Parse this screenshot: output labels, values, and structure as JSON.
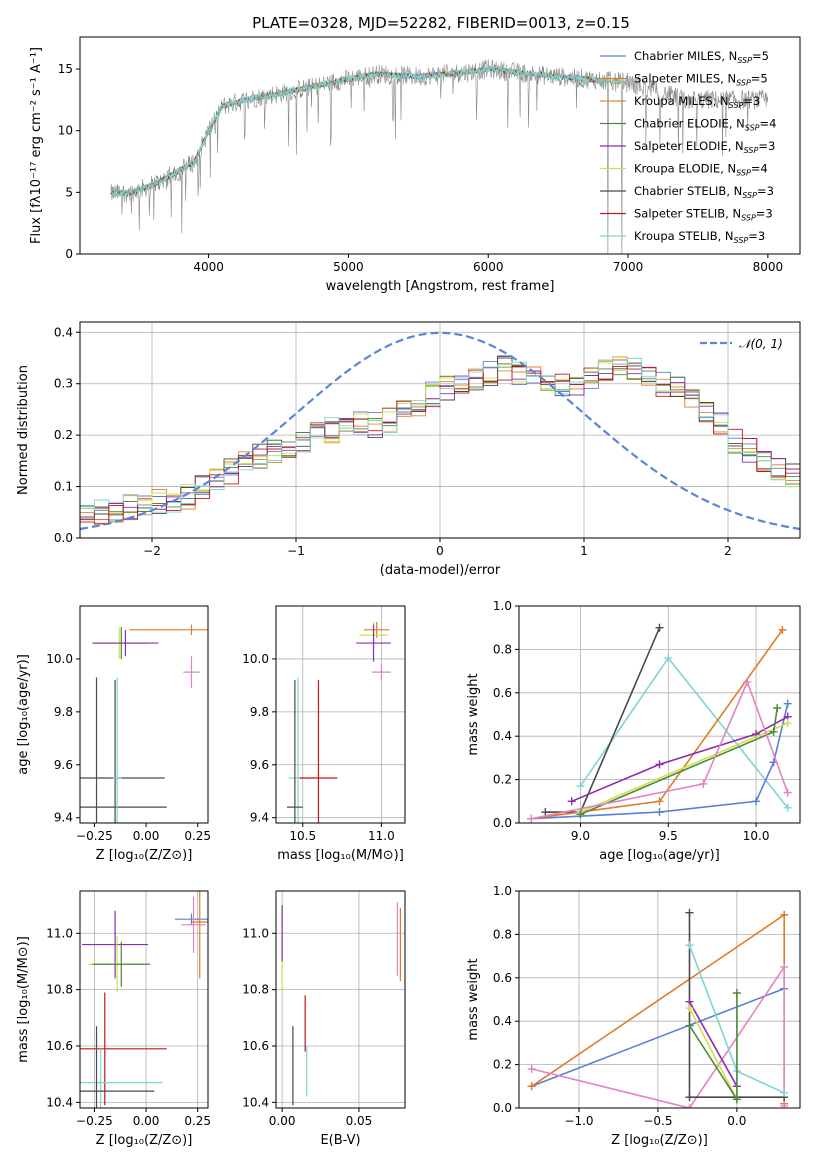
{
  "figure_title": "PLATE=0328, MJD=52282, FIBERID=0013, z=0.15",
  "colors": {
    "Chabrier MILES": "#5b7fd6",
    "Salpeter MILES": "#e07b2a",
    "Kroupa MILES": "#d98c2a",
    "Chabrier ELODIE": "#4a8a3a",
    "Salpeter ELODIE": "#8e2bb0",
    "Kroupa ELODIE": "#cfe04a",
    "Chabrier STELIB": "#4a4a4a",
    "Salpeter STELIB": "#c01818",
    "Kroupa STELIB": "#7fd4d4",
    "normal": "#5b86d6",
    "pink": "#e384c0",
    "data": "#888888"
  },
  "chart_data": [
    {
      "id": "spectrum",
      "type": "line",
      "title": "PLATE=0328, MJD=52282, FIBERID=0013, z=0.15",
      "xlabel": "wavelength [Angstrom, rest frame]",
      "ylabel": "Flux [fλ10⁻¹⁷ erg cm⁻² s⁻¹ A⁻¹]",
      "xlim": [
        3080,
        8230
      ],
      "ylim": [
        0,
        17.6
      ],
      "xticks": [
        4000,
        5000,
        6000,
        7000,
        8000
      ],
      "yticks": [
        0,
        5,
        10,
        15
      ],
      "legend_position": "right",
      "legend": [
        {
          "label": "Chabrier MILES, N",
          "sub": "SSP",
          "suffix": "=5",
          "color": "#5b7fd6"
        },
        {
          "label": "Salpeter MILES, N",
          "sub": "SSP",
          "suffix": "=5",
          "color": "#e07b2a"
        },
        {
          "label": "Kroupa MILES, N",
          "sub": "SSP",
          "suffix": "=3",
          "color": "#d98c2a"
        },
        {
          "label": "Chabrier ELODIE, N",
          "sub": "SSP",
          "suffix": "=4",
          "color": "#4a8a3a"
        },
        {
          "label": "Salpeter ELODIE, N",
          "sub": "SSP",
          "suffix": "=3",
          "color": "#8e2bb0"
        },
        {
          "label": "Kroupa ELODIE, N",
          "sub": "SSP",
          "suffix": "=4",
          "color": "#cfe04a"
        },
        {
          "label": "Chabrier STELIB, N",
          "sub": "SSP",
          "suffix": "=3",
          "color": "#4a4a4a"
        },
        {
          "label": "Salpeter STELIB, N",
          "sub": "SSP",
          "suffix": "=3",
          "color": "#c01818"
        },
        {
          "label": "Kroupa STELIB, N",
          "sub": "SSP",
          "suffix": "=3",
          "color": "#7fd4d4"
        }
      ],
      "continuum": {
        "x": [
          3300,
          3450,
          3600,
          3750,
          3900,
          4000,
          4100,
          4300,
          4500,
          4800,
          5000,
          5200,
          5500,
          5800,
          6000,
          6300,
          6600,
          6800,
          7000,
          7200,
          7400
        ],
        "y": [
          4.9,
          5.0,
          5.6,
          6.5,
          7.5,
          10.0,
          12.0,
          12.6,
          13.0,
          13.7,
          14.2,
          14.6,
          14.4,
          14.7,
          15.0,
          14.6,
          14.3,
          14.1,
          13.9,
          13.2,
          12.5
        ]
      },
      "data_range": [
        3300,
        8000
      ]
    },
    {
      "id": "residuals",
      "type": "histogram",
      "xlabel": "(data-model)/error",
      "ylabel": "Normed distribution",
      "xlim": [
        -2.5,
        2.5
      ],
      "ylim": [
        0,
        0.42
      ],
      "xticks": [
        -2,
        -1,
        0,
        1,
        2
      ],
      "yticks": [
        0.0,
        0.1,
        0.2,
        0.3,
        0.4
      ],
      "bin_width": 0.1,
      "legend_position": "top-right",
      "legend_label": "𝒩(0, 1)",
      "normal": {
        "mean": 0,
        "sigma": 1
      },
      "mean_counts": [
        0.04,
        0.05,
        0.05,
        0.06,
        0.06,
        0.07,
        0.07,
        0.08,
        0.1,
        0.11,
        0.13,
        0.15,
        0.16,
        0.17,
        0.18,
        0.19,
        0.2,
        0.21,
        0.21,
        0.22,
        0.22,
        0.23,
        0.25,
        0.26,
        0.28,
        0.29,
        0.3,
        0.31,
        0.32,
        0.33,
        0.32,
        0.31,
        0.3,
        0.3,
        0.3,
        0.31,
        0.33,
        0.34,
        0.33,
        0.32,
        0.3,
        0.29,
        0.27,
        0.24,
        0.22,
        0.19,
        0.17,
        0.15,
        0.13,
        0.12,
        0.11,
        0.1,
        0.09,
        0.09,
        0.08,
        0.07,
        0.07,
        0.06,
        0.05,
        0.05
      ]
    },
    {
      "id": "age_vs_Z",
      "type": "errorbar",
      "xlabel": "Z [log₁₀(Z/Z⊙)]",
      "ylabel": "age  [log₁₀(age/yr)]",
      "xlim": [
        -0.32,
        0.3
      ],
      "ylim": [
        9.38,
        10.2
      ],
      "xticks": [
        -0.25,
        0.0,
        0.25
      ],
      "xticklabels": [
        "−0.25",
        "0.00",
        "0.25"
      ],
      "yticks": [
        9.4,
        9.6,
        9.8,
        10.0
      ],
      "points": [
        {
          "x": 0.22,
          "y": 10.11,
          "xerr": 0.3,
          "yerr": 0.02,
          "color": "#e07b2a"
        },
        {
          "x": -0.13,
          "y": 10.06,
          "xerr": 0.13,
          "yerr": 0.06,
          "color": "#cfe04a"
        },
        {
          "x": -0.12,
          "y": 10.06,
          "xerr": 0.13,
          "yerr": 0.06,
          "color": "#4a8a3a"
        },
        {
          "x": -0.1,
          "y": 10.06,
          "xerr": 0.16,
          "yerr": 0.05,
          "color": "#8e2bb0"
        },
        {
          "x": 0.22,
          "y": 9.95,
          "xerr": 0.04,
          "yerr": 0.06,
          "color": "#e384c0"
        },
        {
          "x": -0.24,
          "y": 9.55,
          "xerr": 0.33,
          "yerr": 0.38,
          "color": "#4a4a4a"
        },
        {
          "x": -0.15,
          "y": 9.44,
          "xerr": 0.25,
          "yerr": 0.48,
          "color": "#4a4a4a"
        },
        {
          "x": -0.14,
          "y": 9.55,
          "xerr": 0.02,
          "yerr": 0.38,
          "color": "#7fd4d4"
        }
      ]
    },
    {
      "id": "age_vs_mass",
      "type": "errorbar",
      "xlabel": "mass [log₁₀(M/M⊙)]",
      "xlim": [
        10.33,
        11.15
      ],
      "ylim": [
        9.38,
        10.2
      ],
      "xticks": [
        10.5,
        11.0
      ],
      "yticks": [
        9.4,
        9.6,
        9.8,
        10.0
      ],
      "points": [
        {
          "x": 10.97,
          "y": 10.11,
          "xerr": 0.08,
          "yerr": 0.03,
          "color": "#e07b2a"
        },
        {
          "x": 10.95,
          "y": 10.09,
          "xerr": 0.09,
          "yerr": 0.05,
          "color": "#cfe04a"
        },
        {
          "x": 10.95,
          "y": 10.06,
          "xerr": 0.11,
          "yerr": 0.07,
          "color": "#8e2bb0"
        },
        {
          "x": 11.0,
          "y": 9.95,
          "xerr": 0.06,
          "yerr": 0.03,
          "color": "#e384c0"
        },
        {
          "x": 10.47,
          "y": 9.55,
          "xerr": 0.06,
          "yerr": 0.38,
          "color": "#7fd4d4"
        },
        {
          "x": 10.6,
          "y": 9.55,
          "xerr": 0.12,
          "yerr": 0.37,
          "color": "#c01818"
        },
        {
          "x": 10.45,
          "y": 9.44,
          "xerr": 0.05,
          "yerr": 0.48,
          "color": "#4a4a4a"
        }
      ]
    },
    {
      "id": "weight_vs_age",
      "type": "line",
      "xlabel": "age  [log₁₀(age/yr)]",
      "ylabel": "mass weight",
      "xlim": [
        8.65,
        10.25
      ],
      "ylim": [
        0,
        1.0
      ],
      "xticks": [
        9.0,
        9.5,
        10.0
      ],
      "yticks": [
        0.0,
        0.2,
        0.4,
        0.6,
        0.8,
        1.0
      ],
      "series": [
        {
          "color": "#7fd4d4",
          "x": [
            9.0,
            9.5,
            10.18
          ],
          "y": [
            0.17,
            0.76,
            0.07
          ]
        },
        {
          "color": "#4a4a4a",
          "x": [
            8.8,
            9.0,
            9.45
          ],
          "y": [
            0.05,
            0.05,
            0.9
          ]
        },
        {
          "color": "#5b7fd6",
          "x": [
            8.72,
            9.45,
            10.0,
            10.1,
            10.18
          ],
          "y": [
            0.02,
            0.05,
            0.1,
            0.28,
            0.55
          ]
        },
        {
          "color": "#e07b2a",
          "x": [
            8.72,
            9.45,
            10.15
          ],
          "y": [
            0.02,
            0.1,
            0.89
          ]
        },
        {
          "color": "#8e2bb0",
          "x": [
            8.95,
            9.45,
            10.0,
            10.18
          ],
          "y": [
            0.1,
            0.27,
            0.41,
            0.49
          ]
        },
        {
          "color": "#cfe04a",
          "x": [
            9.0,
            10.18
          ],
          "y": [
            0.05,
            0.46
          ]
        },
        {
          "color": "#4a8a3a",
          "x": [
            9.0,
            10.1,
            10.12
          ],
          "y": [
            0.04,
            0.42,
            0.53
          ]
        },
        {
          "color": "#e384c0",
          "x": [
            8.72,
            9.7,
            9.95,
            10.18
          ],
          "y": [
            0.02,
            0.18,
            0.65,
            0.14
          ]
        }
      ]
    },
    {
      "id": "mass_vs_Z",
      "type": "errorbar",
      "xlabel": "Z [log₁₀(Z/Z⊙)]",
      "ylabel": "mass [log₁₀(M/M⊙)]",
      "xlim": [
        -0.32,
        0.3
      ],
      "ylim": [
        10.38,
        11.15
      ],
      "xticks": [
        -0.25,
        0.0,
        0.25
      ],
      "xticklabels": [
        "−0.25",
        "0.00",
        "0.25"
      ],
      "yticks": [
        10.4,
        10.6,
        10.8,
        11.0
      ],
      "points": [
        {
          "x": 0.22,
          "y": 11.05,
          "xerr": 0.08,
          "yerr": 0.02,
          "color": "#5b7fd6"
        },
        {
          "x": 0.26,
          "y": 11.04,
          "xerr": 0.04,
          "yerr": 0.2,
          "color": "#e07b2a"
        },
        {
          "x": 0.23,
          "y": 11.03,
          "xerr": 0.06,
          "yerr": 0.1,
          "color": "#e384c0"
        },
        {
          "x": -0.15,
          "y": 10.96,
          "xerr": 0.16,
          "yerr": 0.12,
          "color": "#8e2bb0"
        },
        {
          "x": -0.14,
          "y": 10.89,
          "xerr": 0.14,
          "yerr": 0.1,
          "color": "#cfe04a"
        },
        {
          "x": -0.12,
          "y": 10.89,
          "xerr": 0.14,
          "yerr": 0.08,
          "color": "#4a8a3a"
        },
        {
          "x": -0.2,
          "y": 10.59,
          "xerr": 0.3,
          "yerr": 0.2,
          "color": "#c01818"
        },
        {
          "x": -0.22,
          "y": 10.47,
          "xerr": 0.3,
          "yerr": 0.12,
          "color": "#7fd4d4"
        },
        {
          "x": -0.24,
          "y": 10.44,
          "xerr": 0.28,
          "yerr": 0.23,
          "color": "#4a4a4a"
        }
      ]
    },
    {
      "id": "mass_vs_ebv",
      "type": "errorbar",
      "xlabel": "E(B-V)",
      "xlim": [
        -0.004,
        0.08
      ],
      "ylim": [
        10.38,
        11.15
      ],
      "xticks": [
        0.0,
        0.05
      ],
      "xticklabels": [
        "0.00",
        "0.05"
      ],
      "yticks": [
        10.4,
        10.6,
        10.8,
        11.0
      ],
      "points": [
        {
          "x": 0.0,
          "y": 10.95,
          "xerr": 0,
          "yerr": 0.15,
          "color": "#cfe04a"
        },
        {
          "x": 0.0,
          "y": 11.0,
          "xerr": 0,
          "yerr": 0.1,
          "color": "#8e2bb0"
        },
        {
          "x": 0.075,
          "y": 10.98,
          "xerr": 0,
          "yerr": 0.13,
          "color": "#e384c0"
        },
        {
          "x": 0.077,
          "y": 10.96,
          "xerr": 0,
          "yerr": 0.13,
          "color": "#e07b2a"
        },
        {
          "x": 0.015,
          "y": 10.68,
          "xerr": 0,
          "yerr": 0.1,
          "color": "#c01818"
        },
        {
          "x": 0.007,
          "y": 10.53,
          "xerr": 0,
          "yerr": 0.14,
          "color": "#4a4a4a"
        },
        {
          "x": 0.016,
          "y": 10.51,
          "xerr": 0,
          "yerr": 0.09,
          "color": "#7fd4d4"
        }
      ]
    },
    {
      "id": "weight_vs_Z",
      "type": "line",
      "xlabel": "Z [log₁₀(Z/Z⊙)]",
      "ylabel": "mass weight",
      "xlim": [
        -1.38,
        0.4
      ],
      "ylim": [
        0,
        1.0
      ],
      "xticks": [
        -1.0,
        -0.5,
        0.0
      ],
      "xticklabels": [
        "−1.0",
        "−0.5",
        "0.0"
      ],
      "yticks": [
        0.0,
        0.2,
        0.4,
        0.6,
        0.8,
        1.0
      ],
      "series": [
        {
          "color": "#5b7fd6",
          "x": [
            -1.3,
            0.3
          ],
          "y": [
            0.1,
            0.55
          ]
        },
        {
          "color": "#e07b2a",
          "x": [
            -1.3,
            0.3,
            0.3
          ],
          "y": [
            0.1,
            0.89,
            0.02
          ]
        },
        {
          "color": "#e384c0",
          "x": [
            -1.3,
            -0.3,
            0.3,
            0.3
          ],
          "y": [
            0.18,
            0.0,
            0.65,
            0.01
          ]
        },
        {
          "color": "#4a4a4a",
          "x": [
            -0.3,
            -0.3,
            0.3
          ],
          "y": [
            0.9,
            0.05,
            0.05
          ]
        },
        {
          "color": "#7fd4d4",
          "x": [
            -0.3,
            0.0,
            0.3
          ],
          "y": [
            0.75,
            0.17,
            0.07
          ]
        },
        {
          "color": "#8e2bb0",
          "x": [
            -0.3,
            0.0
          ],
          "y": [
            0.49,
            0.1
          ]
        },
        {
          "color": "#cfe04a",
          "x": [
            -0.3,
            0.0
          ],
          "y": [
            0.46,
            0.04
          ]
        },
        {
          "color": "#4a8a3a",
          "x": [
            -0.3,
            0.0,
            0.0
          ],
          "y": [
            0.38,
            0.04,
            0.53
          ]
        }
      ]
    }
  ]
}
